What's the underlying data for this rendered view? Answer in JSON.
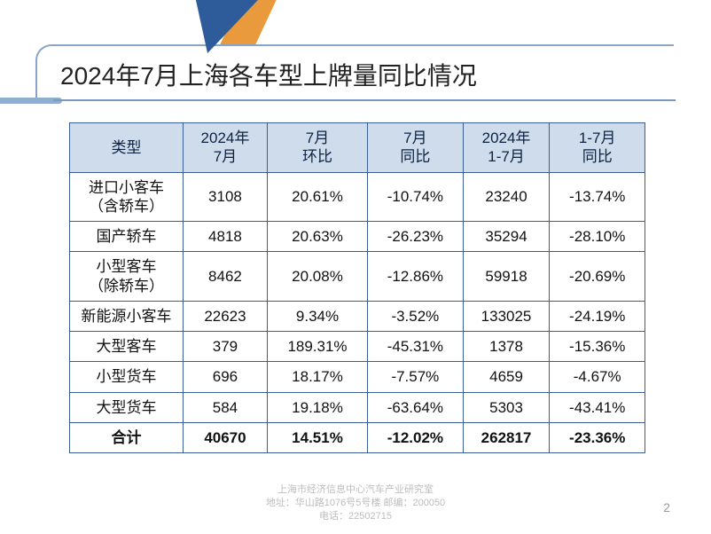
{
  "title": "2024年7月上海各车型上牌量同比情况",
  "table": {
    "columns": [
      "类型",
      "2024年\n7月",
      "7月\n环比",
      "7月\n同比",
      "2024年\n1-7月",
      "1-7月\n同比"
    ],
    "rows": [
      [
        "进口小客车\n（含轿车）",
        "3108",
        "20.61%",
        "-10.74%",
        "23240",
        "-13.74%"
      ],
      [
        "国产轿车",
        "4818",
        "20.63%",
        "-26.23%",
        "35294",
        "-28.10%"
      ],
      [
        "小型客车\n（除轿车）",
        "8462",
        "20.08%",
        "-12.86%",
        "59918",
        "-20.69%"
      ],
      [
        "新能源小客车",
        "22623",
        "9.34%",
        "-3.52%",
        "133025",
        "-24.19%"
      ],
      [
        "大型客车",
        "379",
        "189.31%",
        "-45.31%",
        "1378",
        "-15.36%"
      ],
      [
        "小型货车",
        "696",
        "18.17%",
        "-7.57%",
        "4659",
        "-4.67%"
      ],
      [
        "大型货车",
        "584",
        "19.18%",
        "-63.64%",
        "5303",
        "-43.41%"
      ]
    ],
    "total": [
      "合计",
      "40670",
      "14.51%",
      "-12.02%",
      "262817",
      "-23.36%"
    ],
    "header_bg": "#cfdceb",
    "border_color": "#3a5e93",
    "row_bg": "#ffffff",
    "font_size": 17
  },
  "footer": {
    "line1": "上海市经济信息中心汽车产业研究室",
    "line2": "地址：华山路1076号5号楼  邮编：200050",
    "line3": "电话：22502715"
  },
  "page_number": "2",
  "accent": {
    "triangle_color": "#2e5b9a",
    "rect_color": "#e89a3c",
    "rule_color": "#8faed0"
  }
}
